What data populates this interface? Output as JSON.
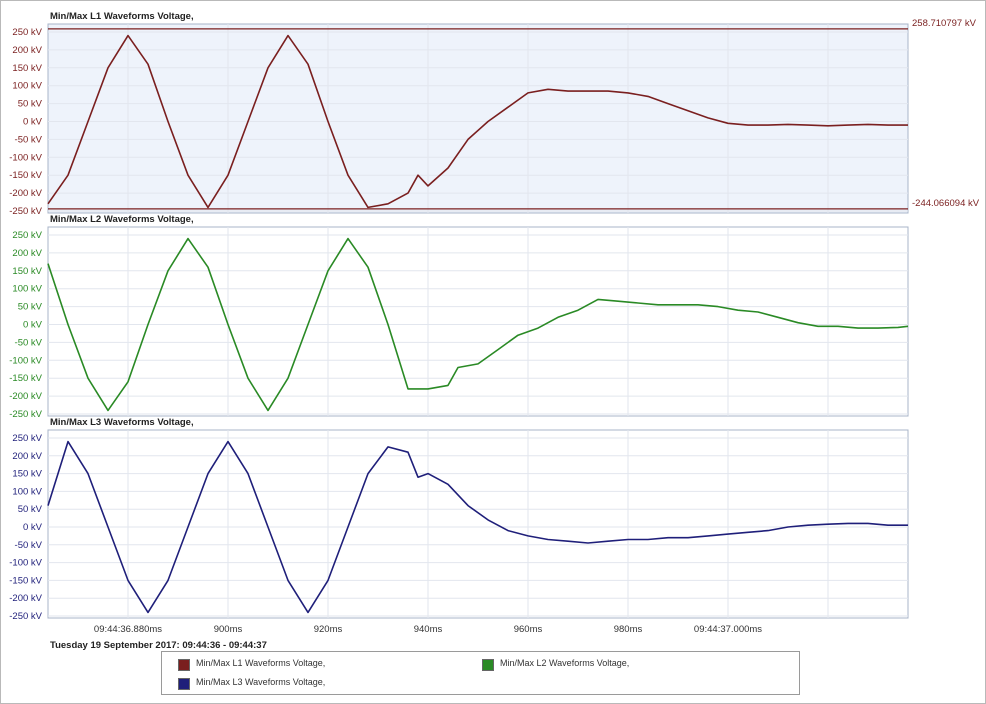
{
  "colors": {
    "l1": "#7a1f1f",
    "l2": "#2a8a25",
    "l3": "#1f1f7a"
  },
  "date_range": "Tuesday 19 September 2017: 09:44:36 - 09:44:37",
  "legend": [
    {
      "label": "Min/Max L1 Waveforms Voltage,",
      "color": "#7a1f1f"
    },
    {
      "label": "Min/Max L2 Waveforms Voltage,",
      "color": "#2a8a25"
    },
    {
      "label": "Min/Max L3 Waveforms Voltage,",
      "color": "#1f1f7a"
    }
  ],
  "chart_data": [
    {
      "type": "line",
      "title": "Min/Max L1 Waveforms Voltage,",
      "xlabel": "",
      "ylabel": "",
      "ylim": [
        -250,
        250
      ],
      "y_ticks": [
        "250 kV",
        "200 kV",
        "150 kV",
        "100 kV",
        "50 kV",
        "0 kV",
        "-50 kV",
        "-100 kV",
        "-150 kV",
        "-200 kV",
        "-250 kV"
      ],
      "max_marker": "258.710797 kV",
      "min_marker": "-244.066094 kV",
      "max_value": 258.710797,
      "min_value": -244.066094,
      "series": [
        {
          "color": "#7a1f1f",
          "points": [
            [
              864,
              -230
            ],
            [
              868,
              -150
            ],
            [
              872,
              0
            ],
            [
              876,
              150
            ],
            [
              880,
              240
            ],
            [
              884,
              160
            ],
            [
              888,
              0
            ],
            [
              892,
              -150
            ],
            [
              896,
              -240
            ],
            [
              900,
              -150
            ],
            [
              904,
              0
            ],
            [
              908,
              150
            ],
            [
              912,
              240
            ],
            [
              916,
              160
            ],
            [
              920,
              0
            ],
            [
              924,
              -150
            ],
            [
              928,
              -240
            ],
            [
              932,
              -230
            ],
            [
              936,
              -200
            ],
            [
              938,
              -150
            ],
            [
              940,
              -180
            ],
            [
              944,
              -130
            ],
            [
              948,
              -50
            ],
            [
              952,
              0
            ],
            [
              956,
              40
            ],
            [
              960,
              80
            ],
            [
              964,
              90
            ],
            [
              968,
              85
            ],
            [
              972,
              85
            ],
            [
              976,
              85
            ],
            [
              980,
              80
            ],
            [
              984,
              70
            ],
            [
              988,
              50
            ],
            [
              992,
              30
            ],
            [
              996,
              10
            ],
            [
              1000,
              -5
            ],
            [
              1004,
              -10
            ],
            [
              1008,
              -10
            ],
            [
              1012,
              -8
            ],
            [
              1016,
              -10
            ],
            [
              1020,
              -12
            ],
            [
              1024,
              -10
            ],
            [
              1028,
              -8
            ],
            [
              1032,
              -10
            ],
            [
              1036,
              -10
            ]
          ]
        }
      ]
    },
    {
      "type": "line",
      "title": "Min/Max L2 Waveforms Voltage,",
      "xlabel": "",
      "ylabel": "",
      "ylim": [
        -250,
        250
      ],
      "y_ticks": [
        "250 kV",
        "200 kV",
        "150 kV",
        "100 kV",
        "50 kV",
        "0 kV",
        "-50 kV",
        "-100 kV",
        "-150 kV",
        "-200 kV",
        "-250 kV"
      ],
      "series": [
        {
          "color": "#2a8a25",
          "points": [
            [
              864,
              170
            ],
            [
              868,
              0
            ],
            [
              872,
              -150
            ],
            [
              876,
              -240
            ],
            [
              880,
              -160
            ],
            [
              884,
              0
            ],
            [
              888,
              150
            ],
            [
              892,
              240
            ],
            [
              896,
              160
            ],
            [
              900,
              0
            ],
            [
              904,
              -150
            ],
            [
              908,
              -240
            ],
            [
              912,
              -150
            ],
            [
              916,
              0
            ],
            [
              920,
              150
            ],
            [
              924,
              240
            ],
            [
              928,
              160
            ],
            [
              932,
              0
            ],
            [
              936,
              -180
            ],
            [
              940,
              -180
            ],
            [
              944,
              -170
            ],
            [
              946,
              -120
            ],
            [
              950,
              -110
            ],
            [
              954,
              -70
            ],
            [
              958,
              -30
            ],
            [
              962,
              -10
            ],
            [
              966,
              20
            ],
            [
              970,
              40
            ],
            [
              974,
              70
            ],
            [
              978,
              65
            ],
            [
              982,
              60
            ],
            [
              986,
              55
            ],
            [
              990,
              55
            ],
            [
              994,
              55
            ],
            [
              998,
              50
            ],
            [
              1002,
              40
            ],
            [
              1006,
              35
            ],
            [
              1010,
              20
            ],
            [
              1014,
              5
            ],
            [
              1018,
              -5
            ],
            [
              1022,
              -5
            ],
            [
              1026,
              -10
            ],
            [
              1030,
              -10
            ],
            [
              1034,
              -8
            ],
            [
              1036,
              -5
            ]
          ]
        }
      ]
    },
    {
      "type": "line",
      "title": "Min/Max L3 Waveforms Voltage,",
      "xlabel": "",
      "ylabel": "",
      "ylim": [
        -250,
        250
      ],
      "y_ticks": [
        "250 kV",
        "200 kV",
        "150 kV",
        "100 kV",
        "50 kV",
        "0 kV",
        "-50 kV",
        "-100 kV",
        "-150 kV",
        "-200 kV",
        "-250 kV"
      ],
      "x_ticks": [
        "09:44:36.880ms",
        "900ms",
        "920ms",
        "940ms",
        "960ms",
        "980ms",
        "09:44:37.000ms"
      ],
      "x_tick_values": [
        880,
        900,
        920,
        940,
        960,
        980,
        1000
      ],
      "series": [
        {
          "color": "#1f1f7a",
          "points": [
            [
              864,
              60
            ],
            [
              868,
              240
            ],
            [
              872,
              150
            ],
            [
              876,
              0
            ],
            [
              880,
              -150
            ],
            [
              884,
              -240
            ],
            [
              888,
              -150
            ],
            [
              892,
              0
            ],
            [
              896,
              150
            ],
            [
              900,
              240
            ],
            [
              904,
              150
            ],
            [
              908,
              0
            ],
            [
              912,
              -150
            ],
            [
              916,
              -240
            ],
            [
              920,
              -150
            ],
            [
              924,
              0
            ],
            [
              928,
              150
            ],
            [
              932,
              225
            ],
            [
              936,
              210
            ],
            [
              938,
              140
            ],
            [
              940,
              150
            ],
            [
              944,
              120
            ],
            [
              948,
              60
            ],
            [
              952,
              20
            ],
            [
              956,
              -10
            ],
            [
              960,
              -25
            ],
            [
              964,
              -35
            ],
            [
              968,
              -40
            ],
            [
              972,
              -45
            ],
            [
              976,
              -40
            ],
            [
              980,
              -35
            ],
            [
              984,
              -35
            ],
            [
              988,
              -30
            ],
            [
              992,
              -30
            ],
            [
              996,
              -25
            ],
            [
              1000,
              -20
            ],
            [
              1004,
              -15
            ],
            [
              1008,
              -10
            ],
            [
              1012,
              0
            ],
            [
              1016,
              5
            ],
            [
              1020,
              8
            ],
            [
              1024,
              10
            ],
            [
              1028,
              10
            ],
            [
              1032,
              5
            ],
            [
              1036,
              5
            ]
          ]
        }
      ]
    }
  ]
}
